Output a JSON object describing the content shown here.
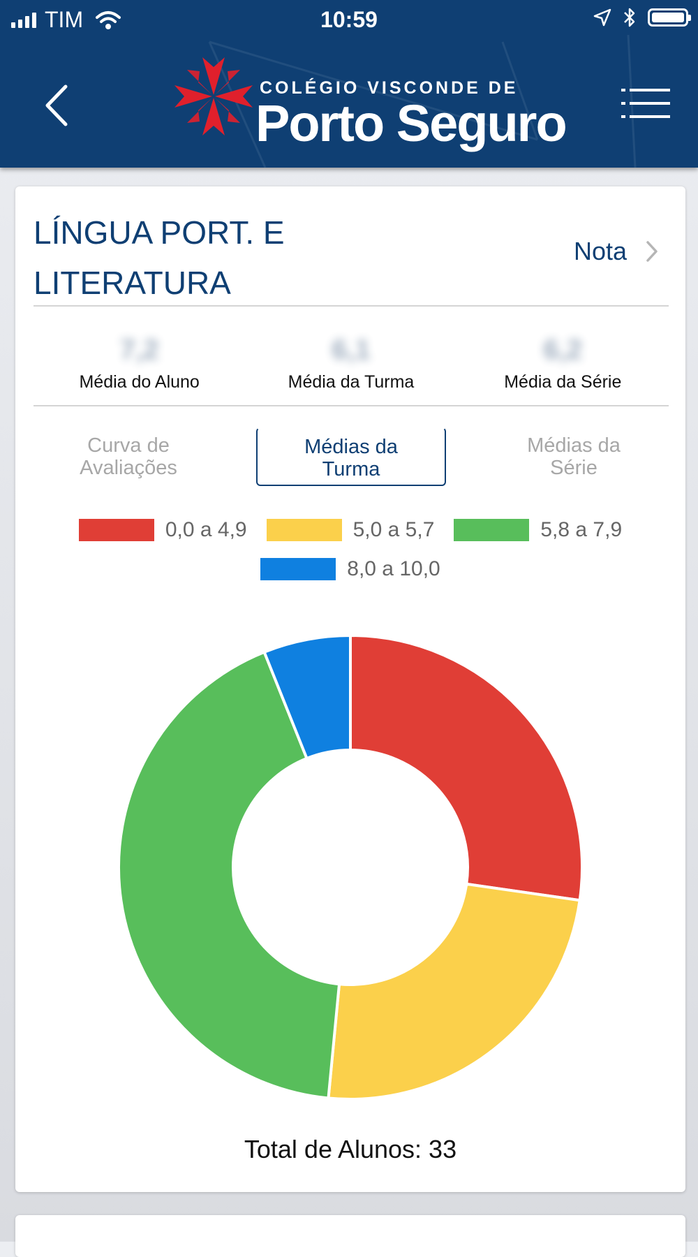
{
  "status_bar": {
    "carrier": "TIM",
    "time": "10:59"
  },
  "header": {
    "logo_subtitle": "COLÉGIO VISCONDE DE",
    "logo_title": "Porto Seguro",
    "back_icon": "chevron-left-icon",
    "menu_icon": "list-menu-icon",
    "colors": {
      "header_bg": "#0f3f73",
      "logo_red": "#e0202c"
    }
  },
  "subject": {
    "title_line1": "LÍNGUA PORT. E",
    "title_line2": "LITERATURA",
    "nota_label": "Nota"
  },
  "averages": [
    {
      "value": "7,2",
      "label": "Média do Aluno"
    },
    {
      "value": "6,1",
      "label": "Média da Turma"
    },
    {
      "value": "6,2",
      "label": "Média da Série"
    }
  ],
  "tabs": [
    {
      "line1": "Curva de",
      "line2": "Avaliações",
      "active": false
    },
    {
      "line1": "Médias da",
      "line2": "Turma",
      "active": true
    },
    {
      "line1": "Médias da",
      "line2": "Série",
      "active": false
    }
  ],
  "chart_data": {
    "type": "pie",
    "categories": [
      "0,0 a 4,9",
      "5,0 a 5,7",
      "5,8 a 7,9",
      "8,0 a 10,0"
    ],
    "values": [
      9,
      8,
      14,
      2
    ],
    "colors": [
      "#e03e36",
      "#fbd04b",
      "#58be5b",
      "#0f80e0"
    ],
    "donut": true,
    "legend_position": "top"
  },
  "total_label": "Total de Alunos: 33"
}
